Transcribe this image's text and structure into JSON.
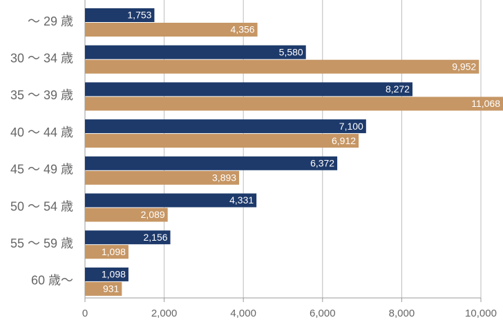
{
  "chart_data": {
    "type": "bar",
    "orientation": "horizontal",
    "categories": [
      "〜 29 歳",
      "30 〜 34 歳",
      "35 〜 39 歳",
      "40 〜 44 歳",
      "45 〜 49 歳",
      "50 〜 54 歳",
      "55 〜 59 歳",
      "60 歳〜"
    ],
    "series": [
      {
        "color": "#1e3a6b",
        "values": [
          1753,
          5580,
          8272,
          7100,
          6372,
          4331,
          2156,
          1098
        ],
        "value_labels": [
          "1,753",
          "5,580",
          "8,272",
          "7,100",
          "6,372",
          "4,331",
          "2,156",
          "1,098"
        ]
      },
      {
        "color": "#c69664",
        "values": [
          4356,
          9952,
          11068,
          6912,
          3893,
          2089,
          1098,
          931
        ],
        "value_labels": [
          "4,356",
          "9,952",
          "11,068",
          "6,912",
          "3,893",
          "2,089",
          "1,098",
          "931"
        ]
      }
    ],
    "xlim": [
      0,
      10000
    ],
    "xticks": [
      0,
      {
        "value": 2000,
        "label": "2,000"
      },
      {
        "value": 4000,
        "label": "4,000"
      },
      {
        "value": 6000,
        "label": "6,000"
      },
      {
        "value": 8000,
        "label": "8,000"
      },
      {
        "value": 10000,
        "label": "10,000"
      }
    ],
    "grid": true
  }
}
